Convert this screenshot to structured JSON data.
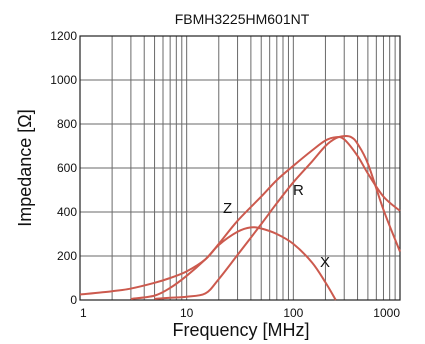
{
  "chart_data": {
    "type": "line",
    "title": "FBMH3225HM601NT",
    "xlabel": "Frequency [MHz]",
    "ylabel": "Impedance [Ω]",
    "x_scale": "log",
    "xlim": [
      1,
      1000
    ],
    "ylim": [
      0,
      1200
    ],
    "x_ticks": [
      "1",
      "10",
      "100",
      "1000"
    ],
    "y_ticks": [
      "0",
      "200",
      "400",
      "600",
      "800",
      "1000",
      "1200"
    ],
    "grid": true,
    "series": [
      {
        "name": "Z",
        "x": [
          1,
          2,
          3,
          5,
          7,
          10,
          15,
          20,
          30,
          50,
          70,
          100,
          150,
          200,
          250,
          300,
          400,
          500,
          700,
          1000
        ],
        "y": [
          25,
          40,
          52,
          78,
          100,
          130,
          185,
          255,
          360,
          470,
          545,
          610,
          680,
          725,
          740,
          730,
          655,
          575,
          470,
          405
        ]
      },
      {
        "name": "R",
        "x": [
          5,
          7,
          10,
          15,
          20,
          30,
          50,
          70,
          100,
          150,
          200,
          250,
          300,
          350,
          400,
          500,
          700,
          1000
        ],
        "y": [
          5,
          10,
          15,
          30,
          95,
          205,
          345,
          440,
          535,
          630,
          700,
          735,
          745,
          740,
          710,
          620,
          410,
          220
        ]
      },
      {
        "name": "X",
        "x": [
          3,
          5,
          7,
          10,
          15,
          20,
          30,
          40,
          50,
          70,
          100,
          150,
          200,
          250
        ],
        "y": [
          5,
          20,
          55,
          110,
          185,
          250,
          310,
          330,
          325,
          300,
          255,
          170,
          80,
          0
        ]
      }
    ]
  }
}
